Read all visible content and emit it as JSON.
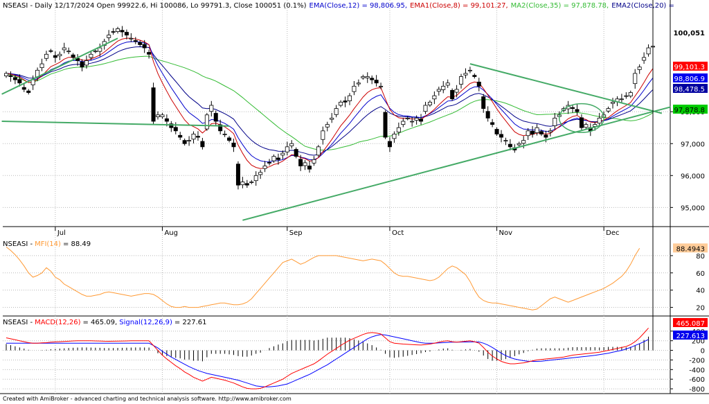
{
  "window": {
    "footer": "Created with AmiBroker - advanced charting and technical analysis software. http://www.amibroker.com"
  },
  "chart_data": [
    {
      "type": "candlestick",
      "symbol": "NSEASI",
      "legend": [
        {
          "text": "NSEASI - Daily 12/17/2024 Open 99922.6, Hi 100086, Lo 99791.3, Close 100051 (0.1%)",
          "color": "#000000"
        },
        {
          "text": "EMA(Close,12) = 98,806.95,",
          "color": "#0000cc"
        },
        {
          "text": "EMA1(Close,8) = 99,101.27,",
          "color": "#cc0000"
        },
        {
          "text": "MA2(Close,35) = 97,878.78,",
          "color": "#33bb33"
        },
        {
          "text": "EMA2(Close,20) =",
          "color": "#000088"
        }
      ],
      "ylim": [
        94400,
        101500
      ],
      "y_ticks": [
        "95,000",
        "96,000",
        "97,000",
        "98,000"
      ],
      "y_tick_values": [
        95000,
        96000,
        97000,
        98000
      ],
      "x_labels": [
        {
          "label": "Jul",
          "index": 11
        },
        {
          "label": "Aug",
          "index": 35
        },
        {
          "label": "Sep",
          "index": 63
        },
        {
          "label": "Oct",
          "index": 86
        },
        {
          "label": "Nov",
          "index": 110
        },
        {
          "label": "Dec",
          "index": 134
        }
      ],
      "price_labels": [
        {
          "text": "100,051",
          "value": 100051,
          "bg": "#ffffff",
          "fg": "#000000",
          "bold": true
        },
        {
          "text": "99,101.3",
          "value": 99101.3,
          "bg": "#ff0000",
          "fg": "#ffffff"
        },
        {
          "text": "98,806.9",
          "value": 98806.9,
          "bg": "#0000ee",
          "fg": "#ffffff"
        },
        {
          "text": "98,478.5",
          "value": 98478.5,
          "bg": "#0000a0",
          "fg": "#ffffff"
        },
        {
          "text": "97,878.8",
          "value": 97878.8,
          "bg": "#00cc00",
          "fg": "#000000"
        }
      ],
      "closes": [
        99200,
        99100,
        99000,
        98900,
        98700,
        98600,
        99000,
        99300,
        99500,
        99800,
        99900,
        99700,
        99800,
        100000,
        99900,
        99700,
        99600,
        99400,
        99600,
        99800,
        99900,
        100000,
        100200,
        100400,
        100500,
        100600,
        100500,
        100400,
        100300,
        100200,
        100100,
        100000,
        99800,
        97700,
        97900,
        97900,
        97700,
        97500,
        97400,
        97200,
        97000,
        97100,
        97300,
        97200,
        96900,
        97900,
        98200,
        97700,
        97400,
        97300,
        97100,
        96900,
        95700,
        95800,
        95700,
        95800,
        96000,
        96100,
        96300,
        96400,
        96600,
        96500,
        96700,
        96900,
        97000,
        96600,
        96300,
        96400,
        96200,
        96500,
        96900,
        97400,
        97600,
        97800,
        98100,
        98300,
        98300,
        98500,
        98800,
        98900,
        99100,
        99100,
        99000,
        98900,
        98800,
        97200,
        96900,
        97300,
        97500,
        97700,
        97800,
        97700,
        97800,
        97700,
        98200,
        98300,
        98500,
        98700,
        98800,
        98900,
        98400,
        98700,
        99100,
        99200,
        99300,
        99100,
        98800,
        98100,
        97800,
        97600,
        97300,
        97200,
        97100,
        96900,
        96800,
        97000,
        97100,
        97400,
        97300,
        97500,
        97300,
        97200,
        97400,
        97800,
        97900,
        98100,
        98200,
        98100,
        98000,
        97500,
        97600,
        97400,
        97600,
        97800,
        97900,
        98100,
        98300,
        98400,
        98400,
        98500,
        98600,
        99200,
        99400,
        99700,
        100000,
        100051
      ],
      "trendlines": [
        {
          "from": [
            -1,
            97700
          ],
          "to": [
            50,
            97550
          ],
          "color": "#44aa66"
        },
        {
          "from": [
            -1,
            98550
          ],
          "to": [
            25,
            100300
          ],
          "color": "#44aa66"
        },
        {
          "from": [
            53,
            94600
          ],
          "to": [
            149,
            98150
          ],
          "color": "#44aa66"
        },
        {
          "from": [
            104,
            99500
          ],
          "to": [
            147,
            97950
          ],
          "color": "#44aa66"
        }
      ],
      "ellipse": {
        "center": [
          129,
          97800
        ],
        "rx_bars": 5,
        "ry_value": 450,
        "color": "#44aa66"
      }
    },
    {
      "type": "line",
      "title": "NSEASI -",
      "indicator_label": "MFI(14)",
      "indicator_color": "#ff9933",
      "value_text": "= 88.49",
      "ylim": [
        10,
        100
      ],
      "y_ticks": [
        "20",
        "40",
        "60",
        "80"
      ],
      "y_tick_values": [
        20,
        40,
        60,
        80
      ],
      "current_label": {
        "text": "88.4943",
        "value": 88.4943,
        "bg": "#ffcc99",
        "fg": "#000000"
      },
      "series": [
        {
          "name": "MFI(14)",
          "color": "#ff9933",
          "values": [
            90,
            86,
            81,
            75,
            68,
            60,
            55,
            57,
            60,
            66,
            62,
            55,
            52,
            47,
            44,
            41,
            38,
            35,
            33,
            33,
            34,
            35,
            37,
            38,
            37,
            36,
            35,
            34,
            33,
            34,
            35,
            36,
            36,
            35,
            32,
            28,
            24,
            21,
            20,
            20,
            21,
            20,
            20,
            20,
            21,
            22,
            23,
            24,
            25,
            25,
            24,
            23,
            23,
            24,
            26,
            30,
            36,
            42,
            48,
            54,
            60,
            66,
            72,
            74,
            76,
            73,
            70,
            72,
            75,
            78,
            80,
            80,
            80,
            80,
            80,
            79,
            78,
            77,
            76,
            75,
            74,
            75,
            76,
            75,
            74,
            70,
            65,
            60,
            57,
            56,
            56,
            55,
            54,
            53,
            52,
            51,
            52,
            55,
            60,
            65,
            68,
            66,
            62,
            58,
            50,
            40,
            32,
            28,
            26,
            25,
            25,
            24,
            23,
            22,
            21,
            20,
            19,
            18,
            17,
            18,
            22,
            26,
            30,
            32,
            30,
            28,
            26,
            28,
            30,
            32,
            34,
            36,
            38,
            40,
            42,
            45,
            48,
            52,
            56,
            62,
            70,
            80,
            88.49
          ]
        }
      ]
    },
    {
      "type": "line",
      "title": "NSEASI -",
      "macd_label": "MACD(12,26)",
      "macd_color": "#ff0000",
      "macd_text": "= 465.09,",
      "signal_label": "Signal(12,26,9)",
      "signal_color": "#0000ff",
      "signal_text": "= 227.61",
      "ylim": [
        -900,
        700
      ],
      "y_ticks": [
        "400",
        "200",
        "0",
        "-200",
        "-400",
        "-600",
        "-800"
      ],
      "y_tick_values": [
        400,
        200,
        0,
        -200,
        -400,
        -600,
        -800
      ],
      "current_labels": [
        {
          "text": "465.087",
          "value": 465.087,
          "bg": "#ff0000",
          "fg": "#ffffff"
        },
        {
          "text": "227.613",
          "value": 227.613,
          "bg": "#0000ee",
          "fg": "#ffffff"
        }
      ],
      "series": [
        {
          "name": "MACD(12,26)",
          "color": "#ff0000",
          "values": [
            260,
            240,
            220,
            200,
            180,
            160,
            150,
            150,
            155,
            160,
            170,
            175,
            180,
            185,
            190,
            195,
            198,
            200,
            200,
            198,
            196,
            194,
            190,
            188,
            190,
            192,
            194,
            196,
            198,
            200,
            200,
            200,
            198,
            100,
            0,
            -100,
            -180,
            -250,
            -320,
            -380,
            -450,
            -500,
            -560,
            -600,
            -640,
            -600,
            -560,
            -580,
            -600,
            -620,
            -650,
            -680,
            -720,
            -760,
            -790,
            -800,
            -800,
            -790,
            -760,
            -720,
            -680,
            -640,
            -600,
            -540,
            -480,
            -440,
            -400,
            -360,
            -320,
            -280,
            -220,
            -150,
            -80,
            -20,
            40,
            100,
            160,
            210,
            250,
            290,
            330,
            360,
            370,
            360,
            340,
            260,
            180,
            150,
            140,
            130,
            125,
            120,
            115,
            110,
            120,
            130,
            150,
            170,
            190,
            200,
            180,
            170,
            180,
            190,
            200,
            180,
            150,
            60,
            -40,
            -120,
            -180,
            -230,
            -260,
            -280,
            -280,
            -270,
            -260,
            -240,
            -220,
            -200,
            -190,
            -180,
            -170,
            -160,
            -150,
            -140,
            -120,
            -100,
            -90,
            -80,
            -70,
            -60,
            -50,
            -40,
            -20,
            0,
            20,
            40,
            60,
            80,
            120,
            180,
            260,
            360,
            465.09
          ]
        },
        {
          "name": "Signal(12,26,9)",
          "color": "#0000ff",
          "values": [
            150,
            150,
            150,
            150,
            150,
            150,
            150,
            150,
            150,
            150,
            150,
            150,
            150,
            150,
            150,
            150,
            150,
            150,
            150,
            150,
            150,
            150,
            150,
            150,
            150,
            150,
            150,
            150,
            150,
            150,
            150,
            150,
            150,
            100,
            50,
            -20,
            -80,
            -140,
            -190,
            -240,
            -290,
            -340,
            -380,
            -420,
            -450,
            -480,
            -500,
            -520,
            -540,
            -560,
            -580,
            -600,
            -620,
            -650,
            -680,
            -710,
            -740,
            -750,
            -760,
            -760,
            -750,
            -740,
            -720,
            -700,
            -660,
            -620,
            -580,
            -540,
            -500,
            -450,
            -400,
            -350,
            -300,
            -240,
            -180,
            -120,
            -60,
            0,
            60,
            120,
            180,
            240,
            280,
            310,
            330,
            320,
            300,
            280,
            260,
            240,
            220,
            200,
            180,
            160,
            150,
            150,
            150,
            155,
            160,
            165,
            170,
            170,
            172,
            174,
            176,
            176,
            174,
            150,
            110,
            60,
            0,
            -60,
            -110,
            -150,
            -180,
            -200,
            -215,
            -225,
            -230,
            -230,
            -225,
            -215,
            -205,
            -195,
            -185,
            -175,
            -165,
            -155,
            -145,
            -135,
            -125,
            -115,
            -105,
            -90,
            -75,
            -60,
            -40,
            -20,
            0,
            30,
            60,
            100,
            140,
            180,
            227.61
          ]
        }
      ]
    }
  ]
}
